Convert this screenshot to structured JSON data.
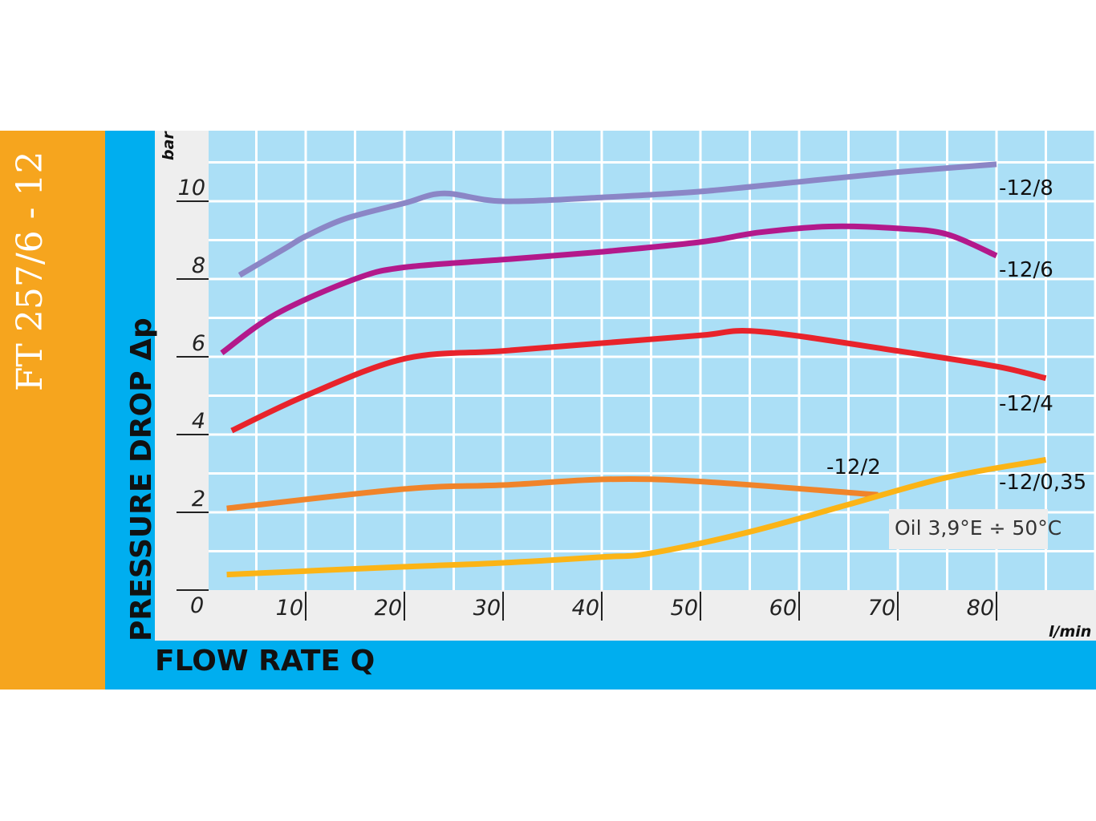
{
  "chart_data": {
    "type": "line",
    "title": "FT 257/6 - 12",
    "xlabel": "FLOW RATE Q",
    "ylabel": "PRESSURE DROP Δp",
    "x_unit": "l/min",
    "y_unit": "bar",
    "xlim": [
      0,
      90
    ],
    "ylim": [
      0,
      11.8
    ],
    "x_ticks": [
      10,
      20,
      30,
      40,
      50,
      60,
      70,
      80
    ],
    "x_tick_labels": [
      "10",
      "20",
      "30",
      "40",
      "50",
      "60",
      "70",
      "80"
    ],
    "y_ticks": [
      2,
      4,
      6,
      8,
      10
    ],
    "y_tick_labels": [
      "2",
      "4",
      "6",
      "8",
      "10"
    ],
    "origin_label": "0",
    "grid": true,
    "note": "Oil 3,9°E ÷ 50°C",
    "series": [
      {
        "name": "-12/8",
        "color": "#8b86c6",
        "x": [
          3.3,
          8,
          10,
          14,
          20,
          24,
          30,
          40,
          50,
          60,
          70,
          80
        ],
        "y": [
          8.1,
          8.8,
          9.1,
          9.55,
          9.95,
          10.2,
          10.0,
          10.1,
          10.25,
          10.5,
          10.75,
          10.95
        ]
      },
      {
        "name": "-12/6",
        "color": "#b3198b",
        "x": [
          1.5,
          7,
          15,
          20,
          30,
          40,
          50,
          56,
          63,
          70,
          75,
          80
        ],
        "y": [
          6.1,
          7.1,
          8.0,
          8.3,
          8.5,
          8.7,
          8.95,
          9.2,
          9.35,
          9.3,
          9.15,
          8.6
        ]
      },
      {
        "name": "-12/4",
        "color": "#e8232b",
        "x": [
          2.5,
          10,
          20,
          30,
          40,
          50,
          56,
          70,
          80,
          85
        ],
        "y": [
          4.1,
          5.0,
          5.95,
          6.15,
          6.35,
          6.55,
          6.65,
          6.15,
          5.75,
          5.45
        ]
      },
      {
        "name": "-12/2",
        "color": "#f0842a",
        "x": [
          2,
          20,
          30,
          45,
          68
        ],
        "y": [
          2.1,
          2.6,
          2.7,
          2.85,
          2.45
        ]
      },
      {
        "name": "-12/0,35",
        "color": "#fbb416",
        "x": [
          2,
          20,
          30,
          40,
          45,
          55,
          65,
          75,
          85
        ],
        "y": [
          0.4,
          0.6,
          0.7,
          0.85,
          0.95,
          1.5,
          2.2,
          2.9,
          3.35
        ]
      }
    ]
  },
  "colors": {
    "orange_band": "#f6a51e",
    "blue_band": "#00aeef",
    "plot_bg": "#abdff6",
    "axis_bg": "#eeeeee",
    "grid": "#ffffff"
  }
}
